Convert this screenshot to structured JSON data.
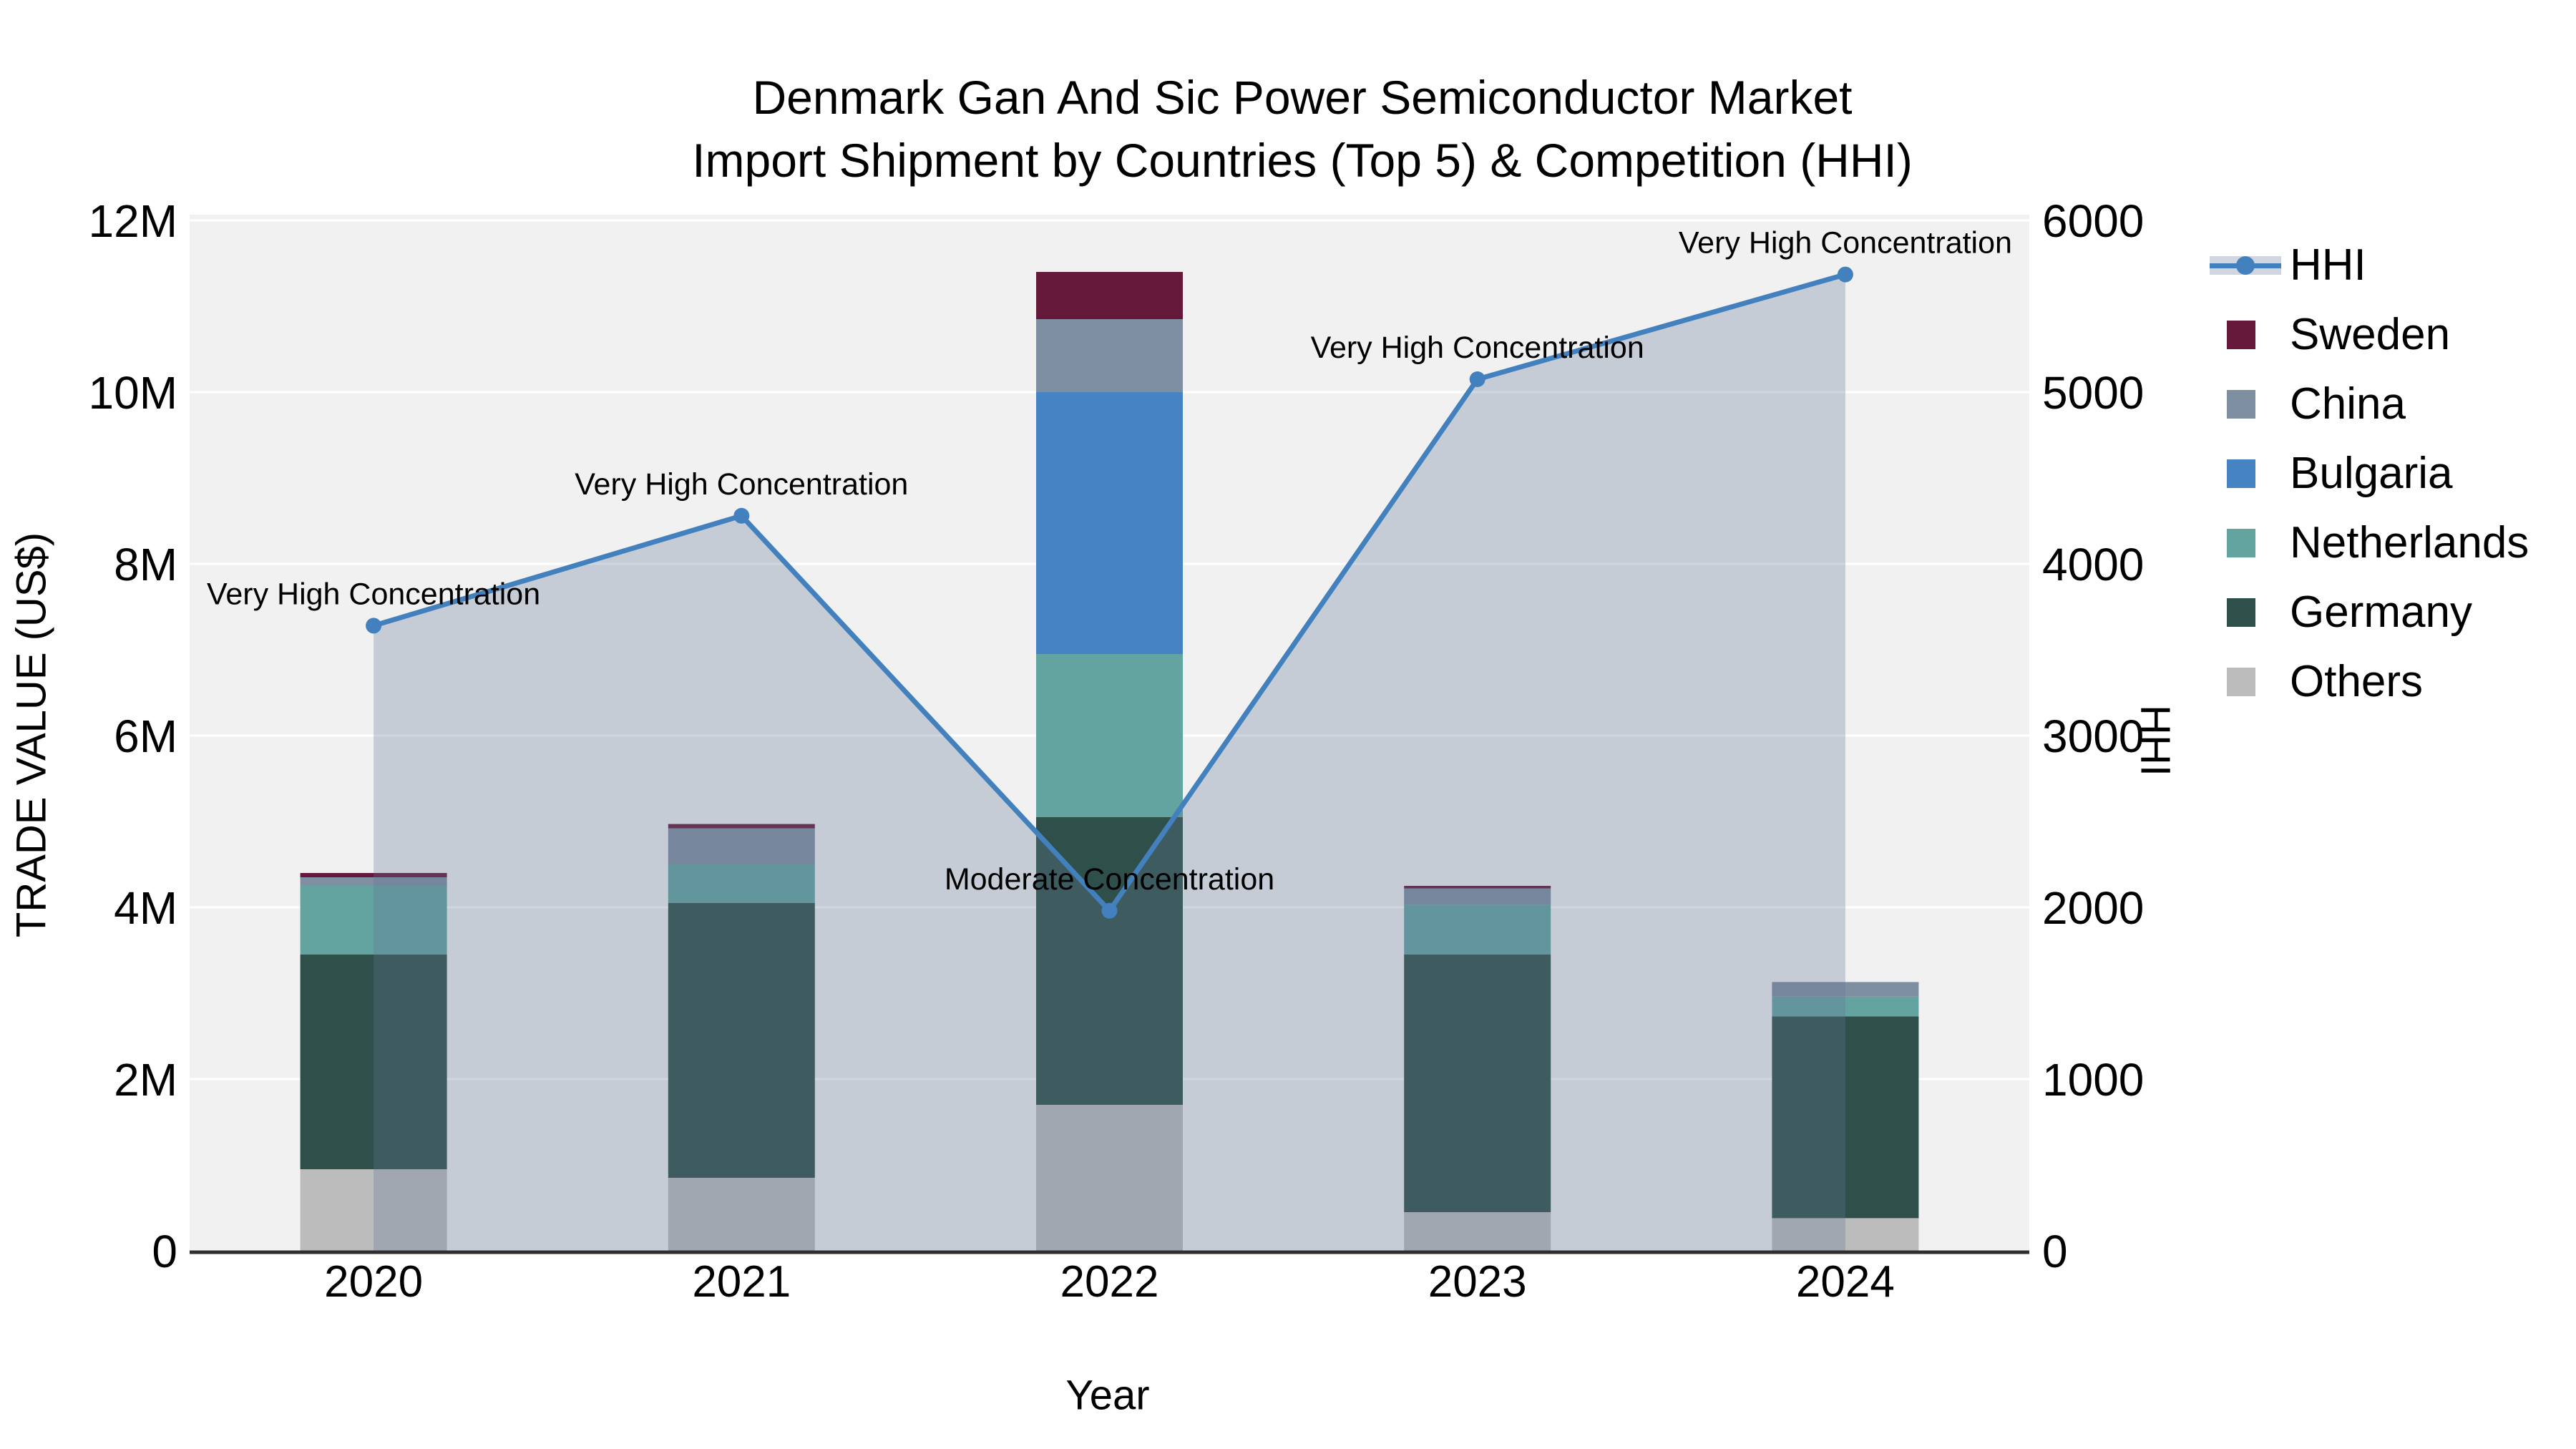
{
  "title": {
    "line1": "Denmark Gan And Sic Power Semiconductor Market",
    "line2": "Import Shipment by Countries (Top 5) & Competition (HHI)"
  },
  "axes": {
    "x": {
      "title": "Year"
    },
    "y_left": {
      "title": "TRADE VALUE (US$)"
    },
    "y_right": {
      "title": "HHI"
    }
  },
  "colors": {
    "plot_bg": "#f1f1f1",
    "gridline": "#ffffff",
    "axis_line": "#2e2e2e",
    "hhi_line": "#4281bd",
    "hhi_area": "rgba(100,120,150,0.30)",
    "legend_band": "#d0d6e0",
    "text": "#000000"
  },
  "legend": {
    "items": [
      {
        "label": "HHI",
        "swatch": "line",
        "color": "#4281bd"
      },
      {
        "label": "Sweden",
        "swatch": "square",
        "color": "#651839"
      },
      {
        "label": "China",
        "swatch": "square",
        "color": "#7e8fa1"
      },
      {
        "label": "Bulgaria",
        "swatch": "square",
        "color": "#4583c2"
      },
      {
        "label": "Netherlands",
        "swatch": "square",
        "color": "#64a4a0"
      },
      {
        "label": "Germany",
        "swatch": "square",
        "color": "#2f4f4a"
      },
      {
        "label": "Others",
        "swatch": "square",
        "color": "#bcbcbc"
      }
    ]
  },
  "chart_data": {
    "type": "bar",
    "subtype": "stacked-bars-with-line",
    "title": "Denmark Gan And Sic Power Semiconductor Market Import Shipment by Countries (Top 5) & Competition (HHI)",
    "xlabel": "Year",
    "ylabel_left": "TRADE VALUE (US$)",
    "ylabel_right": "HHI",
    "categories": [
      "2020",
      "2021",
      "2022",
      "2023",
      "2024"
    ],
    "bar_stack_order_bottom_to_top": [
      "Others",
      "Germany",
      "Netherlands",
      "Bulgaria",
      "China",
      "Sweden"
    ],
    "series": [
      {
        "name": "Others",
        "color": "#bcbcbc",
        "values": [
          950000,
          850000,
          1700000,
          450000,
          380000
        ]
      },
      {
        "name": "Germany",
        "color": "#2f4f4a",
        "values": [
          2500000,
          3200000,
          3350000,
          3000000,
          2350000
        ]
      },
      {
        "name": "Netherlands",
        "color": "#64a4a0",
        "values": [
          800000,
          450000,
          1900000,
          580000,
          230000
        ]
      },
      {
        "name": "Bulgaria",
        "color": "#4583c2",
        "values": [
          0,
          0,
          3050000,
          0,
          0
        ]
      },
      {
        "name": "China",
        "color": "#7e8fa1",
        "values": [
          100000,
          420000,
          850000,
          190000,
          170000
        ]
      },
      {
        "name": "Sweden",
        "color": "#651839",
        "values": [
          50000,
          50000,
          550000,
          30000,
          0
        ]
      }
    ],
    "line_series": {
      "name": "HHI",
      "color": "#4281bd",
      "values": [
        3640,
        4280,
        1980,
        5075,
        5685
      ]
    },
    "annotations": [
      {
        "x": "2020",
        "text": "Very High Concentration"
      },
      {
        "x": "2021",
        "text": "Very High Concentration"
      },
      {
        "x": "2022",
        "text": "Moderate Concentration"
      },
      {
        "x": "2023",
        "text": "Very High Concentration"
      },
      {
        "x": "2024",
        "text": "Very High Concentration"
      }
    ],
    "y_left_ticks": [
      0,
      2000000,
      4000000,
      6000000,
      8000000,
      10000000,
      12000000
    ],
    "y_left_tick_labels": [
      "0",
      "2M",
      "4M",
      "6M",
      "8M",
      "10M",
      "12M"
    ],
    "y_right_ticks": [
      0,
      1000,
      2000,
      3000,
      4000,
      5000,
      6000
    ],
    "y_right_tick_labels": [
      "0",
      "1000",
      "2000",
      "3000",
      "4000",
      "5000",
      "6000"
    ],
    "ylim_left": [
      0,
      12000000
    ],
    "ylim_right": [
      0,
      6000
    ],
    "grid": true,
    "legend_position": "outside-right-top"
  }
}
